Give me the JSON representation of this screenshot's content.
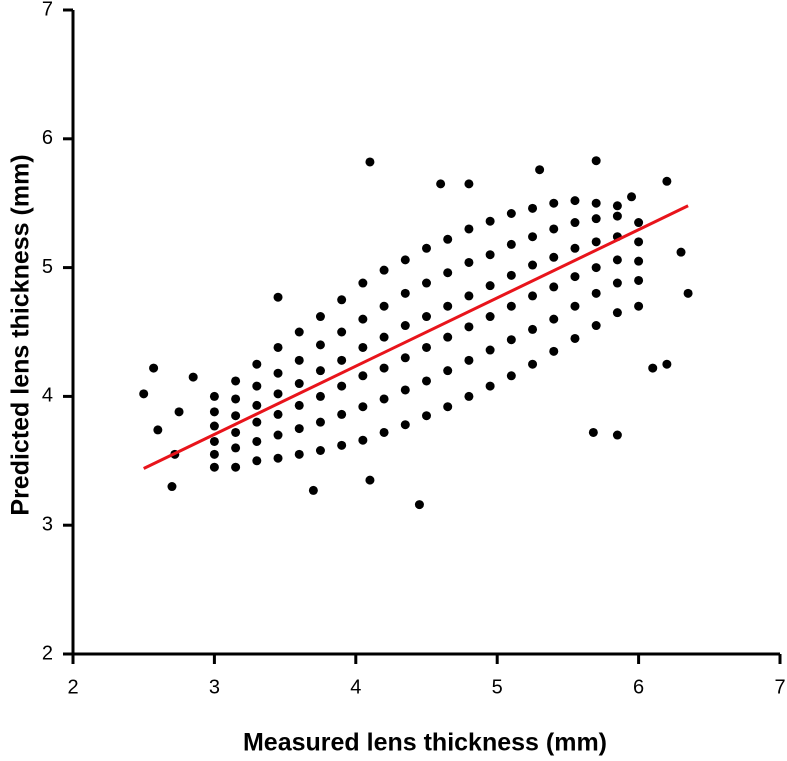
{
  "chart_data": {
    "type": "scatter",
    "x_label": "Measured lens thickness (mm)",
    "y_label": "Predicted lens thickness (mm)",
    "xlim": [
      2,
      7
    ],
    "ylim": [
      2,
      7
    ],
    "xticks": [
      2,
      3,
      4,
      5,
      6,
      7
    ],
    "yticks": [
      2,
      3,
      4,
      5,
      6,
      7
    ],
    "series": [
      {
        "color": "#000000",
        "x": [
          3.0,
          3.0,
          3.0,
          3.0,
          3.0,
          3.0,
          3.15,
          3.15,
          3.15,
          3.15,
          3.15,
          3.15,
          3.3,
          3.3,
          3.3,
          3.3,
          3.3,
          3.3,
          3.45,
          3.45,
          3.45,
          3.45,
          3.45,
          3.45,
          3.6,
          3.6,
          3.6,
          3.6,
          3.6,
          3.6,
          3.75,
          3.75,
          3.75,
          3.75,
          3.75,
          3.75,
          3.9,
          3.9,
          3.9,
          3.9,
          3.9,
          3.9,
          4.05,
          4.05,
          4.05,
          4.05,
          4.05,
          4.05,
          4.2,
          4.2,
          4.2,
          4.2,
          4.2,
          4.2,
          4.35,
          4.35,
          4.35,
          4.35,
          4.35,
          4.35,
          4.5,
          4.5,
          4.5,
          4.5,
          4.5,
          4.5,
          4.65,
          4.65,
          4.65,
          4.65,
          4.65,
          4.65,
          4.8,
          4.8,
          4.8,
          4.8,
          4.8,
          4.8,
          4.95,
          4.95,
          4.95,
          4.95,
          4.95,
          4.95,
          5.1,
          5.1,
          5.1,
          5.1,
          5.1,
          5.1,
          5.25,
          5.25,
          5.25,
          5.25,
          5.25,
          5.25,
          5.4,
          5.4,
          5.4,
          5.4,
          5.4,
          5.4,
          5.55,
          5.55,
          5.55,
          5.55,
          5.55,
          5.55,
          5.7,
          5.7,
          5.7,
          5.7,
          5.7,
          5.7,
          5.85,
          5.85,
          5.85,
          5.85,
          5.85,
          5.85,
          6.0,
          6.0,
          6.0,
          6.0,
          6.0,
          2.5,
          2.57,
          2.6,
          2.7,
          2.72,
          2.75,
          2.85,
          4.1,
          4.45,
          3.7,
          5.7,
          6.2,
          6.35,
          6.3,
          5.85,
          5.68,
          6.1,
          6.2,
          4.1,
          3.45,
          5.3,
          4.8,
          4.6,
          5.95
        ],
        "values": [
          3.45,
          3.55,
          3.65,
          3.77,
          3.88,
          4.0,
          3.45,
          3.6,
          3.72,
          3.85,
          3.98,
          4.12,
          3.5,
          3.65,
          3.8,
          3.93,
          4.08,
          4.25,
          3.52,
          3.7,
          3.86,
          4.02,
          4.18,
          4.38,
          3.55,
          3.75,
          3.93,
          4.1,
          4.28,
          4.5,
          3.58,
          3.8,
          4.0,
          4.2,
          4.4,
          4.62,
          3.62,
          3.86,
          4.08,
          4.28,
          4.5,
          4.75,
          3.66,
          3.92,
          4.16,
          4.38,
          4.6,
          4.88,
          3.72,
          3.98,
          4.22,
          4.46,
          4.7,
          4.98,
          3.78,
          4.05,
          4.3,
          4.55,
          4.8,
          5.06,
          3.85,
          4.12,
          4.38,
          4.62,
          4.88,
          5.15,
          3.92,
          4.2,
          4.46,
          4.7,
          4.96,
          5.22,
          4.0,
          4.28,
          4.54,
          4.78,
          5.04,
          5.3,
          4.08,
          4.36,
          4.62,
          4.86,
          5.1,
          5.36,
          4.16,
          4.44,
          4.7,
          4.94,
          5.18,
          5.42,
          4.25,
          4.52,
          4.78,
          5.02,
          5.24,
          5.46,
          4.35,
          4.6,
          4.85,
          5.08,
          5.3,
          5.5,
          4.45,
          4.7,
          4.93,
          5.15,
          5.35,
          5.52,
          4.55,
          4.8,
          5.0,
          5.2,
          5.38,
          5.5,
          4.65,
          4.88,
          5.06,
          5.24,
          5.4,
          5.48,
          4.7,
          4.9,
          5.05,
          5.2,
          5.35,
          4.02,
          4.22,
          3.74,
          3.3,
          3.55,
          3.88,
          4.15,
          5.82,
          3.16,
          3.27,
          5.83,
          5.67,
          4.8,
          5.12,
          3.7,
          3.72,
          4.22,
          4.25,
          3.35,
          4.77,
          5.76,
          5.65,
          5.65,
          5.55
        ]
      }
    ],
    "fit_line": {
      "color": "#e8141b",
      "x": [
        2.5,
        6.35
      ],
      "values": [
        3.44,
        5.48
      ]
    }
  }
}
